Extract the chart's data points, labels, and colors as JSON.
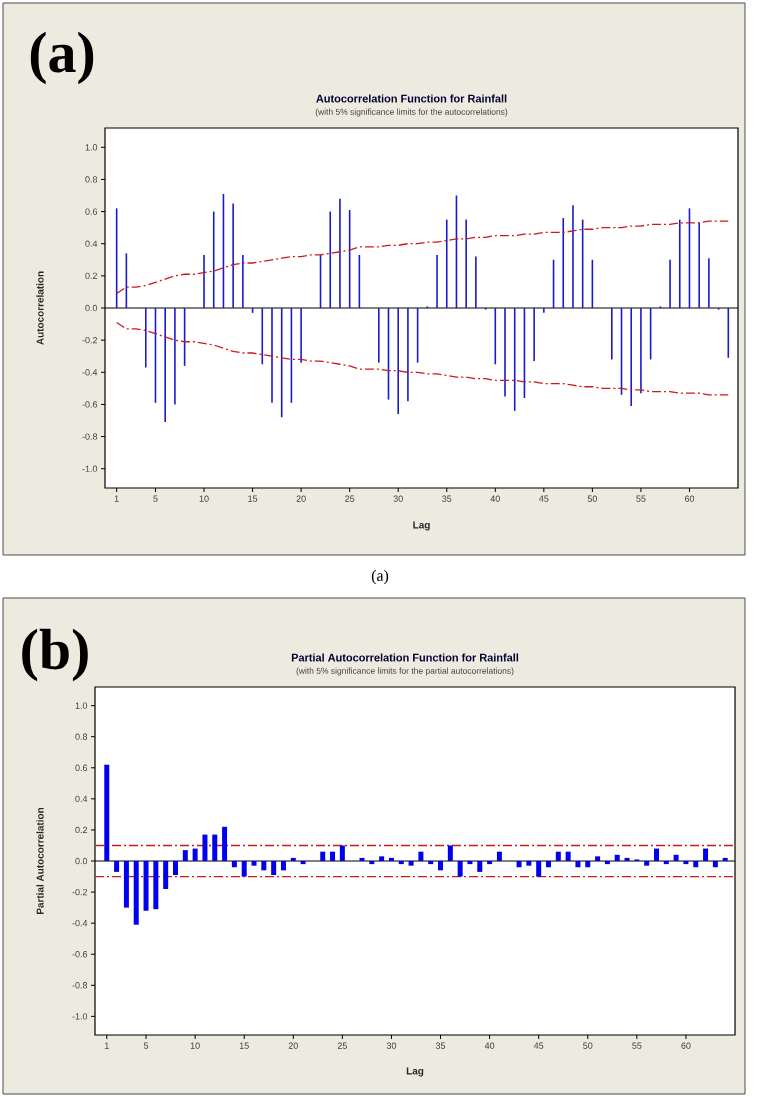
{
  "chart_data": [
    {
      "type": "bar",
      "title": "Autocorrelation Function for Rainfall",
      "subtitle": "(with 5% significance limits for the autocorrelations)",
      "xlabel": "Lag",
      "ylabel": "Autocorrelation",
      "annotations": [
        "(a)",
        "(a)"
      ],
      "x": [
        1,
        2,
        3,
        4,
        5,
        6,
        7,
        8,
        9,
        10,
        11,
        12,
        13,
        14,
        15,
        16,
        17,
        18,
        19,
        20,
        21,
        22,
        23,
        24,
        25,
        26,
        27,
        28,
        29,
        30,
        31,
        32,
        33,
        34,
        35,
        36,
        37,
        38,
        39,
        40,
        41,
        42,
        43,
        44,
        45,
        46,
        47,
        48,
        49,
        50,
        51,
        52,
        53,
        54,
        55,
        56,
        57,
        58,
        59,
        60,
        61,
        62,
        63,
        64
      ],
      "series": [
        {
          "color": "#1a1acc",
          "values": [
            0.62,
            0.34,
            0.0,
            -0.37,
            -0.59,
            -0.71,
            -0.6,
            -0.36,
            0.0,
            0.33,
            0.6,
            0.71,
            0.65,
            0.33,
            -0.03,
            -0.35,
            -0.59,
            -0.68,
            -0.59,
            -0.34,
            0.0,
            0.33,
            0.6,
            0.68,
            0.61,
            0.33,
            0.0,
            -0.34,
            -0.57,
            -0.66,
            -0.58,
            -0.34,
            0.01,
            0.33,
            0.55,
            0.7,
            0.55,
            0.32,
            -0.01,
            -0.35,
            -0.55,
            -0.64,
            -0.56,
            -0.33,
            -0.03,
            0.3,
            0.56,
            0.64,
            0.55,
            0.3,
            0.0,
            -0.32,
            -0.54,
            -0.61,
            -0.53,
            -0.32,
            0.01,
            0.3,
            0.55,
            0.62,
            0.53,
            0.31,
            -0.01,
            -0.31
          ]
        },
        {
          "type": "line",
          "color": "#cc1a1a",
          "line_style": "dashed",
          "values": [
            0.09,
            0.13,
            0.13,
            0.14,
            0.16,
            0.18,
            0.2,
            0.21,
            0.21,
            0.22,
            0.23,
            0.25,
            0.27,
            0.28,
            0.28,
            0.29,
            0.3,
            0.31,
            0.32,
            0.32,
            0.33,
            0.33,
            0.34,
            0.35,
            0.36,
            0.38,
            0.38,
            0.38,
            0.39,
            0.39,
            0.4,
            0.4,
            0.41,
            0.41,
            0.42,
            0.43,
            0.43,
            0.44,
            0.44,
            0.45,
            0.45,
            0.45,
            0.46,
            0.46,
            0.47,
            0.47,
            0.47,
            0.48,
            0.49,
            0.49,
            0.5,
            0.5,
            0.5,
            0.51,
            0.51,
            0.52,
            0.52,
            0.52,
            0.53,
            0.53,
            0.53,
            0.54,
            0.54,
            0.54
          ]
        },
        {
          "type": "line",
          "color": "#cc1a1a",
          "line_style": "dashed",
          "values": [
            -0.09,
            -0.13,
            -0.13,
            -0.14,
            -0.16,
            -0.18,
            -0.2,
            -0.21,
            -0.21,
            -0.22,
            -0.23,
            -0.25,
            -0.27,
            -0.28,
            -0.28,
            -0.29,
            -0.3,
            -0.31,
            -0.32,
            -0.32,
            -0.33,
            -0.33,
            -0.34,
            -0.35,
            -0.36,
            -0.38,
            -0.38,
            -0.38,
            -0.39,
            -0.39,
            -0.4,
            -0.4,
            -0.41,
            -0.41,
            -0.42,
            -0.43,
            -0.43,
            -0.44,
            -0.44,
            -0.45,
            -0.45,
            -0.45,
            -0.46,
            -0.46,
            -0.47,
            -0.47,
            -0.47,
            -0.48,
            -0.49,
            -0.49,
            -0.5,
            -0.5,
            -0.5,
            -0.51,
            -0.51,
            -0.52,
            -0.52,
            -0.52,
            -0.53,
            -0.53,
            -0.53,
            -0.54,
            -0.54,
            -0.54
          ]
        }
      ],
      "xlim": [
        -0.2,
        65
      ],
      "xticks": [
        1,
        5,
        10,
        15,
        20,
        25,
        30,
        35,
        40,
        45,
        50,
        55,
        60
      ],
      "ylim": [
        -1.12,
        1.12
      ],
      "yticks": [
        {
          "value": -1,
          "label": "-1.0"
        },
        {
          "value": -0.8,
          "label": "-0.8"
        },
        {
          "value": -0.6,
          "label": "-0.6"
        },
        {
          "value": -0.4,
          "label": "-0.4"
        },
        {
          "value": -0.2,
          "label": "-0.2"
        },
        {
          "value": 0,
          "label": "0.0"
        },
        {
          "value": 0.2,
          "label": "0.2"
        },
        {
          "value": 0.4,
          "label": "0.4"
        },
        {
          "value": 0.6,
          "label": "0.6"
        },
        {
          "value": 0.8,
          "label": "0.8"
        },
        {
          "value": 1,
          "label": "1.0"
        }
      ]
    },
    {
      "type": "bar",
      "title": "Partial Autocorrelation Function for Rainfall",
      "subtitle": "(with 5% significance limits for the partial autocorrelations)",
      "xlabel": "Lag",
      "ylabel": "Partial Autocorrelation",
      "annotations": [
        "(b)"
      ],
      "x": [
        1,
        2,
        3,
        4,
        5,
        6,
        7,
        8,
        9,
        10,
        11,
        12,
        13,
        14,
        15,
        16,
        17,
        18,
        19,
        20,
        21,
        22,
        23,
        24,
        25,
        26,
        27,
        28,
        29,
        30,
        31,
        32,
        33,
        34,
        35,
        36,
        37,
        38,
        39,
        40,
        41,
        42,
        43,
        44,
        45,
        46,
        47,
        48,
        49,
        50,
        51,
        52,
        53,
        54,
        55,
        56,
        57,
        58,
        59,
        60,
        61,
        62,
        63,
        64
      ],
      "series": [
        {
          "color": "#0000ee",
          "values": [
            0.62,
            -0.07,
            -0.3,
            -0.41,
            -0.32,
            -0.31,
            -0.18,
            -0.09,
            0.07,
            0.08,
            0.17,
            0.17,
            0.22,
            -0.04,
            -0.1,
            -0.03,
            -0.06,
            -0.09,
            -0.06,
            0.02,
            -0.02,
            0.0,
            0.06,
            0.06,
            0.1,
            0.0,
            0.02,
            -0.02,
            0.03,
            0.02,
            -0.02,
            -0.03,
            0.06,
            -0.02,
            -0.06,
            0.1,
            -0.1,
            -0.02,
            -0.07,
            -0.02,
            0.06,
            0.0,
            -0.04,
            -0.03,
            -0.1,
            -0.04,
            0.06,
            0.06,
            -0.04,
            -0.04,
            0.03,
            -0.02,
            0.04,
            0.02,
            0.01,
            -0.03,
            0.08,
            -0.02,
            0.04,
            -0.02,
            -0.04,
            0.08,
            -0.04,
            0.02
          ]
        }
      ],
      "ref_lines": [
        {
          "axis": "y",
          "value": 0.1,
          "color": "#cc1a1a",
          "line_style": "dashed"
        },
        {
          "axis": "y",
          "value": -0.1,
          "color": "#cc1a1a",
          "line_style": "dashed"
        }
      ],
      "xlim": [
        -0.2,
        65
      ],
      "xticks": [
        1,
        5,
        10,
        15,
        20,
        25,
        30,
        35,
        40,
        45,
        50,
        55,
        60
      ],
      "ylim": [
        -1.12,
        1.12
      ],
      "yticks": [
        {
          "value": -1,
          "label": "-1.0"
        },
        {
          "value": -0.8,
          "label": "-0.8"
        },
        {
          "value": -0.6,
          "label": "-0.6"
        },
        {
          "value": -0.4,
          "label": "-0.4"
        },
        {
          "value": -0.2,
          "label": "-0.2"
        },
        {
          "value": 0,
          "label": "0.0"
        },
        {
          "value": 0.2,
          "label": "0.2"
        },
        {
          "value": 0.4,
          "label": "0.4"
        },
        {
          "value": 0.6,
          "label": "0.6"
        },
        {
          "value": 0.8,
          "label": "0.8"
        },
        {
          "value": 1,
          "label": "1.0"
        }
      ]
    }
  ]
}
